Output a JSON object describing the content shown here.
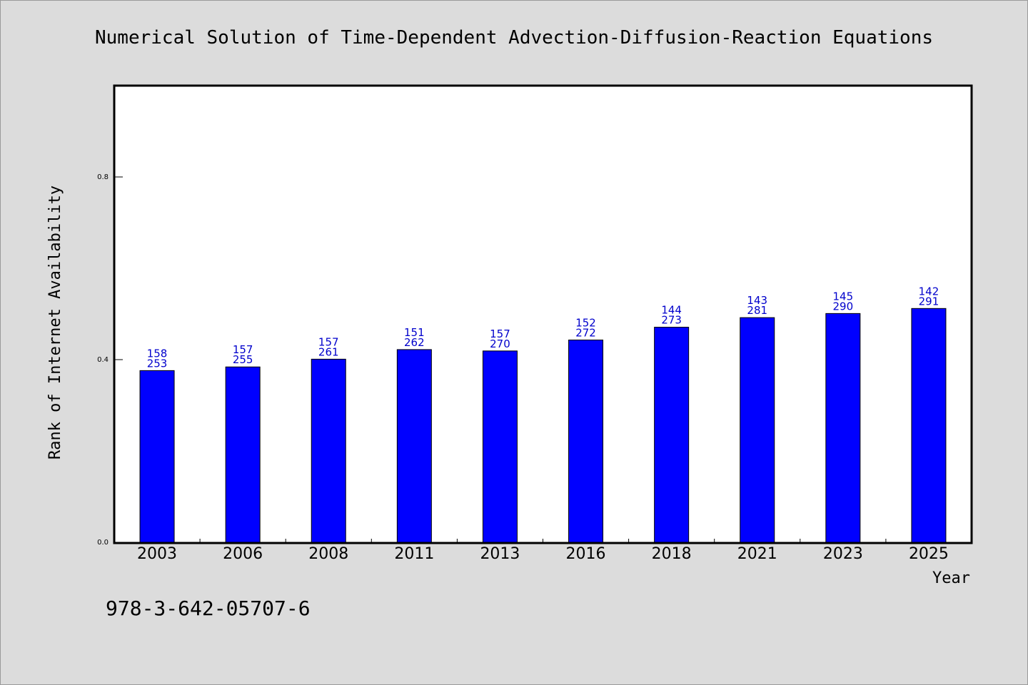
{
  "chart_data": {
    "type": "bar",
    "title": "Numerical Solution of Time-Dependent Advection-Diffusion-Reaction Equations",
    "xlabel": "Year",
    "ylabel": "Rank of Internet Availability",
    "categories": [
      "2003",
      "2006",
      "2008",
      "2011",
      "2013",
      "2016",
      "2018",
      "2021",
      "2023",
      "2025"
    ],
    "values": [
      0.376,
      0.384,
      0.401,
      0.422,
      0.419,
      0.443,
      0.471,
      0.492,
      0.501,
      0.512
    ],
    "data_labels": [
      [
        "158",
        "253"
      ],
      [
        "157",
        "255"
      ],
      [
        "157",
        "261"
      ],
      [
        "151",
        "262"
      ],
      [
        "157",
        "270"
      ],
      [
        "152",
        "272"
      ],
      [
        "144",
        "273"
      ],
      [
        "143",
        "281"
      ],
      [
        "145",
        "290"
      ],
      [
        "142",
        "291"
      ]
    ],
    "yticks": [
      "0.0",
      "0.4",
      "0.8"
    ],
    "ylim": [
      0,
      1.0
    ],
    "bar_color": "#0000ff",
    "label_color": "#0000cc",
    "grid": false,
    "legend": false
  },
  "footer": "978-3-642-05707-6"
}
